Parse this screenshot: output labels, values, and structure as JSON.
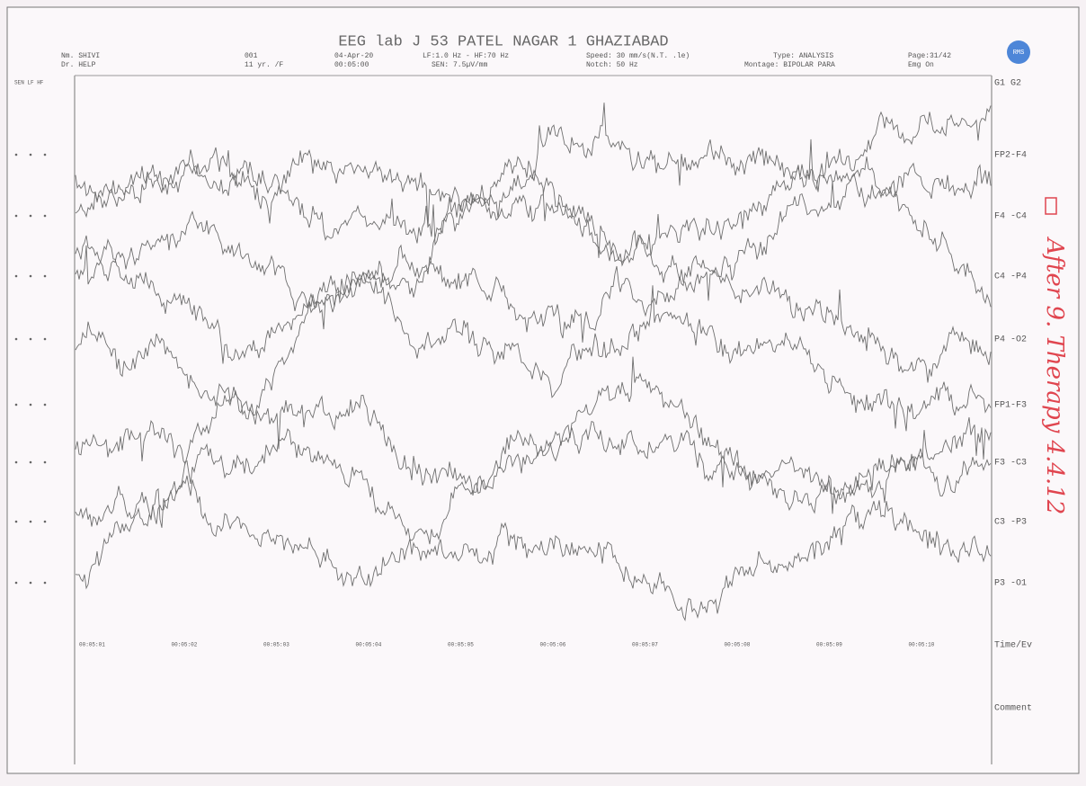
{
  "header": {
    "title": "EEG lab  J 53 PATEL NAGAR 1  GHAZIABAD",
    "name": "Nm. SHIVI",
    "doctor": "Dr. HELP",
    "id": "001",
    "age_sex": "11 yr. /F",
    "date": "04-Apr-20",
    "time": "00:05:00",
    "filters": "LF:1.0 Hz - HF:70 Hz",
    "sensitivity": "SEN: 7.5µV/mm",
    "speed": "Speed: 30 mm/s(N.T. .le)",
    "notch": "Notch: 50 Hz",
    "type": "Type: ANALYSIS",
    "montage": "Montage: BIPOLAR PARA",
    "page": "Page:31/42",
    "emg": "Emg On",
    "logo": "RMS",
    "columns": "SEN LF HF"
  },
  "channels": [
    "G1  G2",
    "FP2-F4",
    "F4 -C4",
    "C4 -P4",
    "P4 -O2",
    "FP1-F3",
    "F3 -C3",
    "C3 -P3",
    "P3 -O1",
    "Time/Ev",
    "Comment"
  ],
  "time_labels": [
    "00:05:01",
    "00:05:02",
    "00:05:03",
    "00:05:04",
    "00:05:05",
    "00:05:06",
    "00:05:07",
    "00:05:08",
    "00:05:09",
    "00:05:10"
  ],
  "annotation": "After 9. Therapy  4.4.12"
}
